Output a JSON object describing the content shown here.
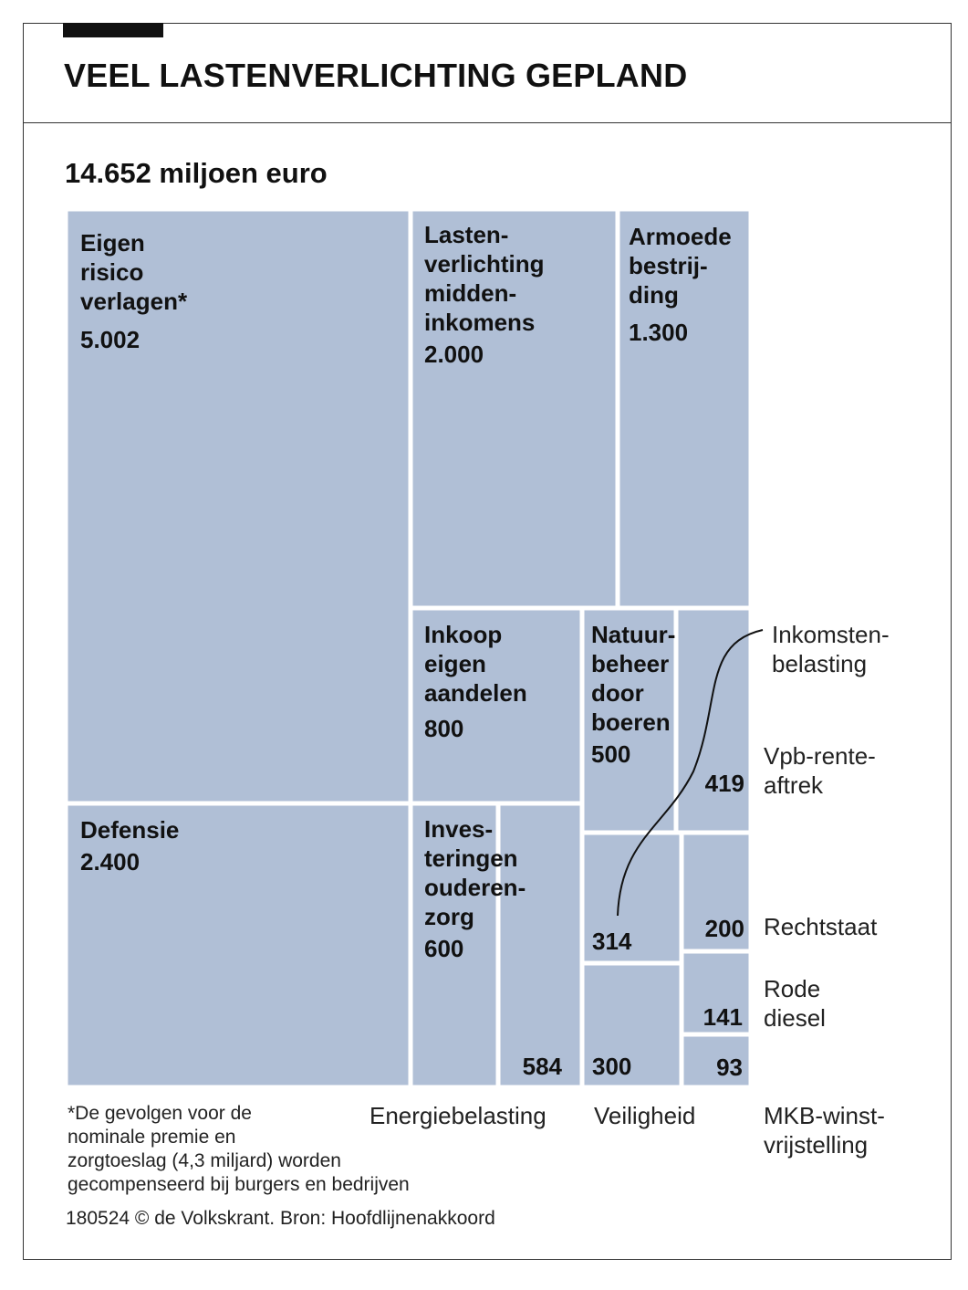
{
  "title": "VEEL LASTENVERLICHTING GEPLAND",
  "chart_data": {
    "type": "treemap",
    "title": "VEEL LASTENVERLICHTING GEPLAND",
    "subtitle": "14.652 miljoen euro",
    "unit": "miljoen euro",
    "total": 14652,
    "fill_color": "#b0bfd6",
    "items": [
      {
        "name": "Eigen risico verlagen*",
        "lines": [
          "Eigen",
          "risico",
          "verlagen*"
        ],
        "value": 5002,
        "value_label": "5.002"
      },
      {
        "name": "Defensie",
        "lines": [
          "Defensie"
        ],
        "value": 2400,
        "value_label": "2.400"
      },
      {
        "name": "Lastenverlichting middeninkomens",
        "lines": [
          "Lasten-",
          "verlichting",
          "midden-",
          "inkomens"
        ],
        "value": 2000,
        "value_label": "2.000"
      },
      {
        "name": "Armoedebestrijding",
        "lines": [
          "Armoede",
          "bestrij-",
          "ding"
        ],
        "value": 1300,
        "value_label": "1.300"
      },
      {
        "name": "Inkoop eigen aandelen",
        "lines": [
          "Inkoop",
          "eigen",
          "aandelen"
        ],
        "value": 800,
        "value_label": "800"
      },
      {
        "name": "Investeringen ouderenzorg",
        "lines": [
          "Inves-",
          "teringen",
          "ouderen-",
          "zorg"
        ],
        "value": 600,
        "value_label": "600"
      },
      {
        "name": "Energiebelasting",
        "lines": [
          "Energiebelasting"
        ],
        "value": 584,
        "value_label": "584"
      },
      {
        "name": "Natuurbeheer door boeren",
        "lines": [
          "Natuur-",
          "beheer",
          "door",
          "boeren"
        ],
        "value": 500,
        "value_label": "500"
      },
      {
        "name": "Vpb-renteaftrek",
        "lines": [
          "Vpb-rente-",
          "aftrek"
        ],
        "value": 419,
        "value_label": "419"
      },
      {
        "name": "Inkomstenbelasting",
        "lines": [
          "Inkomsten-",
          "belasting"
        ],
        "value": 314,
        "value_label": "314"
      },
      {
        "name": "Veiligheid",
        "lines": [
          "Veiligheid"
        ],
        "value": 300,
        "value_label": "300"
      },
      {
        "name": "Rechtstaat",
        "lines": [
          "Rechtstaat"
        ],
        "value": 200,
        "value_label": "200"
      },
      {
        "name": "Rode diesel",
        "lines": [
          "Rode",
          "diesel"
        ],
        "value": 141,
        "value_label": "141"
      },
      {
        "name": "MKB-winstvrijstelling",
        "lines": [
          "MKB-winst-",
          "vrijstelling"
        ],
        "value": 93,
        "value_label": "93"
      }
    ]
  },
  "footnote": [
    "*De gevolgen voor de",
    "nominale premie en",
    "zorgtoeslag (4,3 miljard) worden",
    "gecompenseerd bij burgers en bedrijven"
  ],
  "source": "180524 © de Volkskrant. Bron: Hoofdlijnenakkoord"
}
